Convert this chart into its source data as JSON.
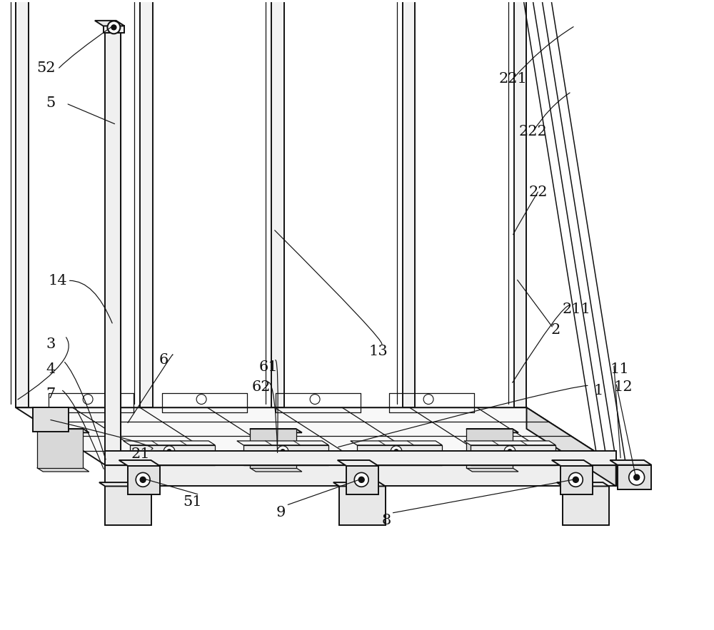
{
  "bg_color": "#ffffff",
  "line_color": "#111111",
  "lw_main": 1.4,
  "lw_thin": 0.9,
  "lw_annotation": 0.8,
  "font_size": 15,
  "fig_width": 10.0,
  "fig_height": 8.83
}
